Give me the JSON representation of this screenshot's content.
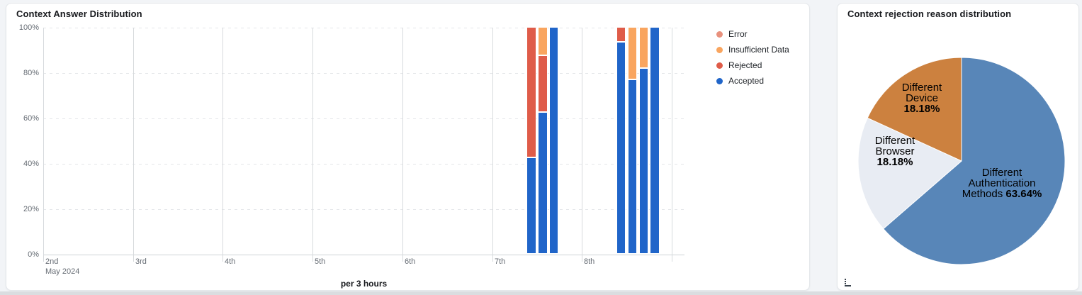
{
  "page": {
    "background": "#f2f4f7"
  },
  "left_card": {
    "title": "Context Answer Distribution",
    "xaxis_title": "per 3 hours",
    "legend": [
      {
        "label": "Error",
        "color": "#e8917d"
      },
      {
        "label": "Insufficient Data",
        "color": "#f9a55f"
      },
      {
        "label": "Rejected",
        "color": "#df5c49"
      },
      {
        "label": "Accepted",
        "color": "#2065c9"
      }
    ]
  },
  "right_card": {
    "title": "Context rejection reason distribution"
  },
  "chart_data": [
    {
      "type": "bar",
      "stacking": "percent",
      "title": "Context Answer Distribution",
      "xlabel": "per 3 hours",
      "ylabel": "",
      "ylim": [
        0,
        100
      ],
      "grid": true,
      "legend_position": "right",
      "y_ticks": [
        "100%",
        "80%",
        "60%",
        "40%",
        "20%",
        "0%"
      ],
      "x_ticks": [
        {
          "label": "2nd",
          "sub": "May 2024"
        },
        {
          "label": "3rd"
        },
        {
          "label": "4th"
        },
        {
          "label": "5th"
        },
        {
          "label": "6th"
        },
        {
          "label": "7th"
        },
        {
          "label": "8th"
        },
        {
          "label": ""
        }
      ],
      "series_colors": {
        "Accepted": "#2065c9",
        "Rejected": "#df5c49",
        "Insufficient Data": "#f9a55f",
        "Error": "#e8917d"
      },
      "bars": [
        {
          "date": "May 7",
          "time": "09:00",
          "day_index": 5,
          "slot": 3,
          "segments": [
            {
              "name": "Accepted",
              "pct": 42.5
            },
            {
              "name": "Rejected",
              "pct": 57.5
            }
          ]
        },
        {
          "date": "May 7",
          "time": "12:00",
          "day_index": 5,
          "slot": 4,
          "segments": [
            {
              "name": "Accepted",
              "pct": 62.5
            },
            {
              "name": "Rejected",
              "pct": 25
            },
            {
              "name": "Insufficient Data",
              "pct": 12.5
            }
          ]
        },
        {
          "date": "May 7",
          "time": "15:00",
          "day_index": 5,
          "slot": 5,
          "segments": [
            {
              "name": "Accepted",
              "pct": 100
            }
          ]
        },
        {
          "date": "May 8",
          "time": "09:00",
          "day_index": 6,
          "slot": 3,
          "segments": [
            {
              "name": "Accepted",
              "pct": 93.5
            },
            {
              "name": "Rejected",
              "pct": 6.5
            }
          ]
        },
        {
          "date": "May 8",
          "time": "12:00",
          "day_index": 6,
          "slot": 4,
          "segments": [
            {
              "name": "Accepted",
              "pct": 77
            },
            {
              "name": "Insufficient Data",
              "pct": 23
            }
          ]
        },
        {
          "date": "May 8",
          "time": "15:00",
          "day_index": 6,
          "slot": 5,
          "segments": [
            {
              "name": "Accepted",
              "pct": 82
            },
            {
              "name": "Insufficient Data",
              "pct": 18
            }
          ]
        },
        {
          "date": "May 8",
          "time": "18:00",
          "day_index": 6,
          "slot": 6,
          "segments": [
            {
              "name": "Accepted",
              "pct": 100
            }
          ]
        }
      ]
    },
    {
      "type": "pie",
      "title": "Context rejection reason distribution",
      "start_angle": 0,
      "direction": "clockwise",
      "slices": [
        {
          "key": "auth",
          "label_lines": [
            "Different",
            "Authentication",
            "Methods"
          ],
          "pct_text": "63.64%",
          "value": 63.64,
          "color": "#5886b8",
          "pct_inline": true
        },
        {
          "key": "browser",
          "label_lines": [
            "Different",
            "Browser"
          ],
          "pct_text": "18.18%",
          "value": 18.18,
          "color": "#e8ecf3",
          "pct_inline": false
        },
        {
          "key": "device",
          "label_lines": [
            "Different",
            "Device"
          ],
          "pct_text": "18.18%",
          "value": 18.18,
          "color": "#cc813f",
          "pct_inline": false
        }
      ]
    }
  ]
}
